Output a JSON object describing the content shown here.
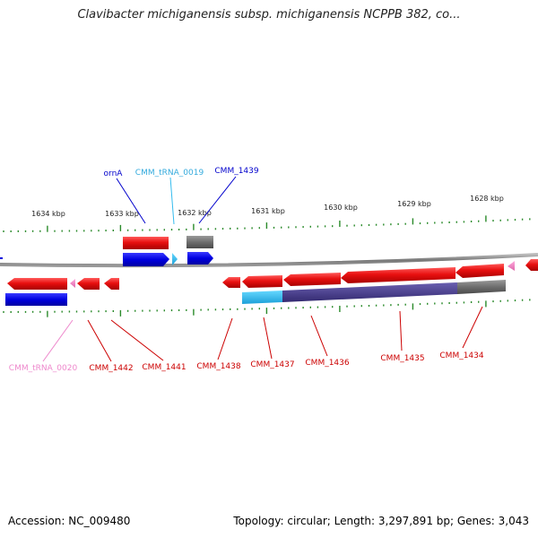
{
  "title": "Clavibacter michiganensis subsp. michiganensis NCPPB 382, co...",
  "footer": {
    "accession": "Accession: NC_009480",
    "summary": "Topology: circular; Length: 3,297,891 bp; Genes: 3,043"
  },
  "scale": [
    "1634 kbp",
    "1633 kbp",
    "1632 kbp",
    "1631 kbp",
    "1630 kbp",
    "1629 kbp",
    "1628 kbp"
  ],
  "colors": {
    "cds": "#e01010",
    "cds_label": "#cc0000",
    "trna": "#33bbee",
    "trna_label": "#33aadd",
    "trna_pink": "#ee88cc",
    "blue_gene": "#0000dd",
    "grey_gene": "#707070",
    "purple_band": "#4a3f88",
    "tick": "#2a8a2a",
    "backbone": "#888888"
  },
  "labels": {
    "ornA": "ornA",
    "CMM_tRNA_0019": "CMM_tRNA_0019",
    "CMM_1439": "CMM_1439",
    "CMM_tRNA_0020": "CMM_tRNA_0020",
    "CMM_1442": "CMM_1442",
    "CMM_1441": "CMM_1441",
    "CMM_1438": "CMM_1438",
    "CMM_1437": "CMM_1437",
    "CMM_1436": "CMM_1436",
    "CMM_1435": "CMM_1435",
    "CMM_1434": "CMM_1434"
  }
}
